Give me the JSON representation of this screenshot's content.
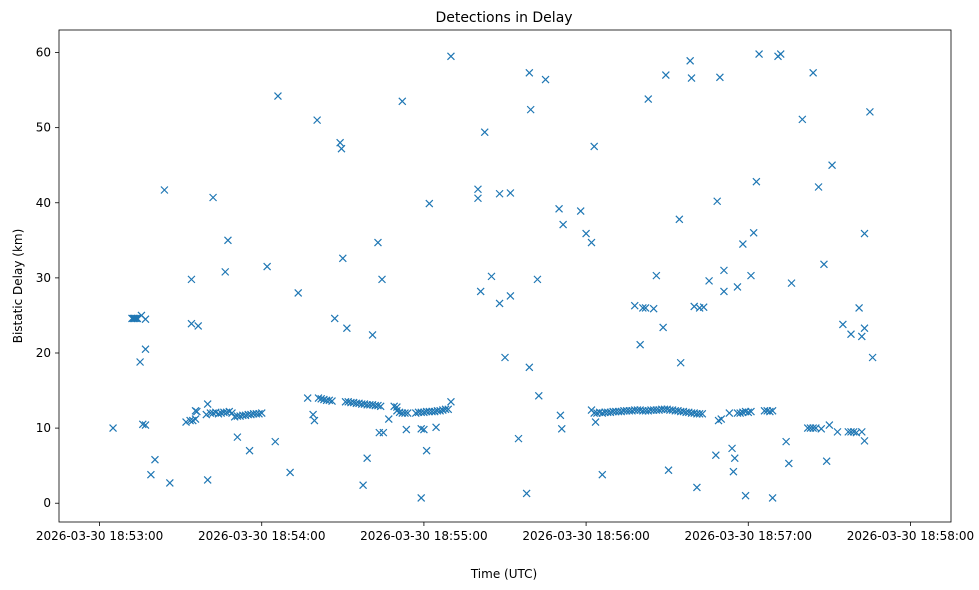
{
  "chart_data": {
    "type": "scatter",
    "title": "Detections in Delay",
    "xlabel": "Time (UTC)",
    "ylabel": "Bistatic Delay (km)",
    "marker": "x",
    "color": "#1f77b4",
    "x_unit": "seconds after 2026-03-30 18:53:00",
    "xlim": [
      -15,
      315
    ],
    "ylim": [
      -2.5,
      63
    ],
    "x_ticks": [
      {
        "value": 0,
        "label": "2026-03-30 18:53:00"
      },
      {
        "value": 60,
        "label": "2026-03-30 18:54:00"
      },
      {
        "value": 120,
        "label": "2026-03-30 18:55:00"
      },
      {
        "value": 180,
        "label": "2026-03-30 18:56:00"
      },
      {
        "value": 240,
        "label": "2026-03-30 18:57:00"
      },
      {
        "value": 300,
        "label": "2026-03-30 18:58:00"
      }
    ],
    "y_ticks": [
      {
        "value": 0,
        "label": "0"
      },
      {
        "value": 10,
        "label": "10"
      },
      {
        "value": 20,
        "label": "20"
      },
      {
        "value": 30,
        "label": "30"
      },
      {
        "value": 40,
        "label": "40"
      },
      {
        "value": 50,
        "label": "50"
      },
      {
        "value": 60,
        "label": "60"
      }
    ],
    "points": [
      [
        5,
        10
      ],
      [
        12,
        24.6
      ],
      [
        12.5,
        24.6
      ],
      [
        13,
        24.6
      ],
      [
        13.5,
        24.6
      ],
      [
        14,
        24.6
      ],
      [
        15.5,
        25
      ],
      [
        15,
        18.8
      ],
      [
        16,
        10.5
      ],
      [
        17,
        10.4
      ],
      [
        17,
        24.5
      ],
      [
        17,
        20.5
      ],
      [
        19,
        3.8
      ],
      [
        20.5,
        5.8
      ],
      [
        24,
        41.7
      ],
      [
        26,
        2.7
      ],
      [
        32,
        10.8
      ],
      [
        33.5,
        11
      ],
      [
        34.5,
        11
      ],
      [
        35.5,
        11.2
      ],
      [
        34,
        29.8
      ],
      [
        34,
        23.9
      ],
      [
        35.5,
        12.3
      ],
      [
        36,
        12.2
      ],
      [
        36.5,
        23.6
      ],
      [
        39.5,
        11.8
      ],
      [
        40,
        13.2
      ],
      [
        41,
        12
      ],
      [
        42,
        12
      ],
      [
        43,
        12.1
      ],
      [
        44,
        11.9
      ],
      [
        45,
        12
      ],
      [
        46,
        12.1
      ],
      [
        47,
        12.1
      ],
      [
        48,
        12.2
      ],
      [
        49,
        12
      ],
      [
        50,
        11.5
      ],
      [
        51,
        11.6
      ],
      [
        52,
        11.6
      ],
      [
        53,
        11.7
      ],
      [
        54,
        11.7
      ],
      [
        55,
        11.8
      ],
      [
        56,
        11.8
      ],
      [
        57,
        11.9
      ],
      [
        58,
        11.9
      ],
      [
        59,
        11.9
      ],
      [
        60,
        12
      ],
      [
        40,
        3.1
      ],
      [
        42,
        40.7
      ],
      [
        46.5,
        30.8
      ],
      [
        47.5,
        35
      ],
      [
        51,
        8.8
      ],
      [
        55.5,
        7
      ],
      [
        62,
        31.5
      ],
      [
        66,
        54.2
      ],
      [
        65,
        8.2
      ],
      [
        70.5,
        4.1
      ],
      [
        73.5,
        28
      ],
      [
        77,
        14
      ],
      [
        79,
        11.8
      ],
      [
        79.5,
        11
      ],
      [
        80.5,
        51
      ],
      [
        81,
        14
      ],
      [
        82,
        13.9
      ],
      [
        83,
        13.8
      ],
      [
        84,
        13.7
      ],
      [
        85,
        13.7
      ],
      [
        86,
        13.6
      ],
      [
        87,
        24.6
      ],
      [
        89,
        48
      ],
      [
        89.5,
        47.2
      ],
      [
        90,
        32.6
      ],
      [
        91,
        13.5
      ],
      [
        92,
        13.5
      ],
      [
        93,
        13.4
      ],
      [
        94,
        13.4
      ],
      [
        91.5,
        23.3
      ],
      [
        95,
        13.3
      ],
      [
        96,
        13.3
      ],
      [
        97,
        13.2
      ],
      [
        98,
        13.2
      ],
      [
        99,
        13.1
      ],
      [
        100,
        13.1
      ],
      [
        101,
        13.1
      ],
      [
        102,
        13
      ],
      [
        103,
        13
      ],
      [
        104,
        12.9
      ],
      [
        97.5,
        2.4
      ],
      [
        99,
        6
      ],
      [
        101,
        22.4
      ],
      [
        103,
        34.7
      ],
      [
        104.5,
        29.8
      ],
      [
        103.5,
        9.4
      ],
      [
        105,
        9.4
      ],
      [
        107,
        11.2
      ],
      [
        109,
        12.9
      ],
      [
        110,
        12.8
      ],
      [
        110,
        12.3
      ],
      [
        111,
        12.1
      ],
      [
        112,
        12
      ],
      [
        113,
        12
      ],
      [
        114,
        12
      ],
      [
        112,
        53.5
      ],
      [
        113.5,
        9.8
      ],
      [
        117,
        12
      ],
      [
        118,
        12.1
      ],
      [
        119,
        12.1
      ],
      [
        120,
        12.1
      ],
      [
        121,
        12.2
      ],
      [
        122,
        12.2
      ],
      [
        123,
        12.2
      ],
      [
        124,
        12.2
      ],
      [
        125,
        12.3
      ],
      [
        126,
        12.3
      ],
      [
        127,
        12.4
      ],
      [
        128,
        12.5
      ],
      [
        129,
        12.5
      ],
      [
        130,
        13.5
      ],
      [
        119,
        0.7
      ],
      [
        119,
        9.9
      ],
      [
        120,
        9.8
      ],
      [
        121,
        7
      ],
      [
        122,
        39.9
      ],
      [
        124.5,
        10.1
      ],
      [
        130,
        59.5
      ],
      [
        140,
        41.8
      ],
      [
        140,
        40.6
      ],
      [
        141,
        28.2
      ],
      [
        142.5,
        49.4
      ],
      [
        145,
        30.2
      ],
      [
        148,
        26.6
      ],
      [
        148,
        41.2
      ],
      [
        150,
        19.4
      ],
      [
        152,
        27.6
      ],
      [
        152,
        41.3
      ],
      [
        155,
        8.6
      ],
      [
        158,
        1.3
      ],
      [
        159,
        57.3
      ],
      [
        159.5,
        52.4
      ],
      [
        159,
        18.1
      ],
      [
        162,
        29.8
      ],
      [
        162.5,
        14.3
      ],
      [
        165,
        56.4
      ],
      [
        170,
        39.2
      ],
      [
        170.5,
        11.7
      ],
      [
        171,
        9.9
      ],
      [
        171.5,
        37.1
      ],
      [
        178,
        38.9
      ],
      [
        180,
        35.9
      ],
      [
        182,
        34.7
      ],
      [
        183,
        47.5
      ],
      [
        182,
        12.4
      ],
      [
        183,
        12
      ],
      [
        183.5,
        10.8
      ],
      [
        184,
        12
      ],
      [
        185,
        12.1
      ],
      [
        186,
        3.8
      ],
      [
        186,
        12
      ],
      [
        187,
        12.1
      ],
      [
        188,
        12.1
      ],
      [
        189,
        12.1
      ],
      [
        190,
        12.2
      ],
      [
        191,
        12.2
      ],
      [
        192,
        12.2
      ],
      [
        193,
        12.2
      ],
      [
        194,
        12.3
      ],
      [
        195,
        12.3
      ],
      [
        196,
        12.3
      ],
      [
        197,
        12.3
      ],
      [
        198,
        12.4
      ],
      [
        199,
        12.4
      ],
      [
        200,
        12.4
      ],
      [
        201,
        12.3
      ],
      [
        202,
        12.3
      ],
      [
        203,
        12.3
      ],
      [
        204,
        12.4
      ],
      [
        205,
        12.4
      ],
      [
        206,
        12.4
      ],
      [
        207,
        12.4
      ],
      [
        208,
        12.5
      ],
      [
        209,
        12.5
      ],
      [
        210,
        12.5
      ],
      [
        211,
        12.4
      ],
      [
        212,
        12.4
      ],
      [
        213,
        12.3
      ],
      [
        214,
        12.3
      ],
      [
        215,
        12.2
      ],
      [
        216,
        12.2
      ],
      [
        217,
        12.1
      ],
      [
        218,
        12.1
      ],
      [
        219,
        12
      ],
      [
        220,
        12
      ],
      [
        221,
        11.9
      ],
      [
        222,
        11.9
      ],
      [
        198,
        26.3
      ],
      [
        200,
        21.1
      ],
      [
        201,
        26
      ],
      [
        202,
        26
      ],
      [
        203,
        53.8
      ],
      [
        205,
        25.9
      ],
      [
        206,
        30.3
      ],
      [
        208.5,
        23.4
      ],
      [
        209.5,
        57
      ],
      [
        210.5,
        4.4
      ],
      [
        214.5,
        37.8
      ],
      [
        215,
        18.7
      ],
      [
        218.5,
        58.9
      ],
      [
        219,
        56.6
      ],
      [
        220,
        26.2
      ],
      [
        221,
        2.1
      ],
      [
        222,
        26
      ],
      [
        223,
        11.9
      ],
      [
        223.5,
        26.1
      ],
      [
        225.5,
        29.6
      ],
      [
        228,
        6.4
      ],
      [
        228.5,
        40.2
      ],
      [
        229,
        11
      ],
      [
        230,
        11.2
      ],
      [
        229.5,
        56.7
      ],
      [
        231,
        31
      ],
      [
        231,
        28.2
      ],
      [
        233,
        12
      ],
      [
        234,
        7.3
      ],
      [
        234.5,
        4.2
      ],
      [
        235,
        6
      ],
      [
        236,
        28.8
      ],
      [
        236,
        12
      ],
      [
        237,
        12
      ],
      [
        238,
        12.1
      ],
      [
        238,
        34.5
      ],
      [
        239,
        1
      ],
      [
        239,
        12.2
      ],
      [
        240,
        12.1
      ],
      [
        241,
        30.3
      ],
      [
        241,
        12.2
      ],
      [
        242,
        36
      ],
      [
        243,
        42.8
      ],
      [
        244,
        59.8
      ],
      [
        246,
        12.3
      ],
      [
        247,
        12.3
      ],
      [
        248,
        12.2
      ],
      [
        249,
        12.3
      ],
      [
        249,
        0.7
      ],
      [
        251,
        59.5
      ],
      [
        252,
        59.8
      ],
      [
        254,
        8.2
      ],
      [
        255,
        5.3
      ],
      [
        256,
        29.3
      ],
      [
        260,
        51.1
      ],
      [
        262,
        10
      ],
      [
        263,
        10
      ],
      [
        264,
        57.3
      ],
      [
        264,
        10
      ],
      [
        265,
        10
      ],
      [
        266,
        42.1
      ],
      [
        267,
        9.9
      ],
      [
        268,
        31.8
      ],
      [
        269,
        5.6
      ],
      [
        270,
        10.4
      ],
      [
        271,
        45
      ],
      [
        273,
        9.5
      ],
      [
        275,
        23.8
      ],
      [
        277,
        9.5
      ],
      [
        278,
        22.5
      ],
      [
        278,
        9.5
      ],
      [
        279,
        9.5
      ],
      [
        280,
        9.4
      ],
      [
        281,
        26
      ],
      [
        282,
        9.5
      ],
      [
        282,
        22.2
      ],
      [
        283,
        23.3
      ],
      [
        283,
        8.3
      ],
      [
        283,
        35.9
      ],
      [
        285,
        52.1
      ],
      [
        286,
        19.4
      ]
    ]
  }
}
